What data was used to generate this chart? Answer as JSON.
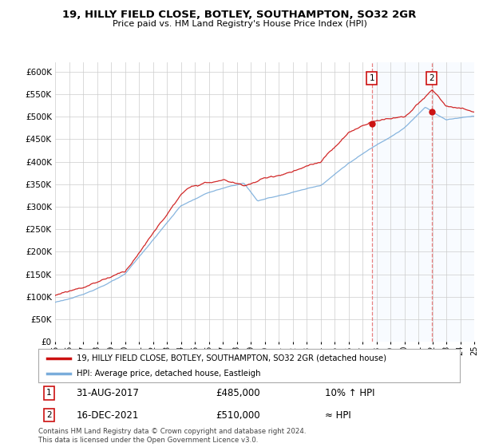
{
  "title1": "19, HILLY FIELD CLOSE, BOTLEY, SOUTHAMPTON, SO32 2GR",
  "title2": "Price paid vs. HM Land Registry's House Price Index (HPI)",
  "ytick_vals": [
    0,
    50000,
    100000,
    150000,
    200000,
    250000,
    300000,
    350000,
    400000,
    450000,
    500000,
    550000,
    600000
  ],
  "x_start_year": 1995,
  "x_end_year": 2025,
  "legend_line1": "19, HILLY FIELD CLOSE, BOTLEY, SOUTHAMPTON, SO32 2GR (detached house)",
  "legend_line2": "HPI: Average price, detached house, Eastleigh",
  "annotation1_date": "31-AUG-2017",
  "annotation1_price": "£485,000",
  "annotation1_hpi": "10% ↑ HPI",
  "annotation2_date": "16-DEC-2021",
  "annotation2_price": "£510,000",
  "annotation2_hpi": "≈ HPI",
  "footer": "Contains HM Land Registry data © Crown copyright and database right 2024.\nThis data is licensed under the Open Government Licence v3.0.",
  "sale1_year": 2017.667,
  "sale1_price": 485000,
  "sale2_year": 2021.958,
  "sale2_price": 510000,
  "hpi_color": "#7aaddb",
  "price_color": "#cc1111",
  "vline_color": "#e88080",
  "shade_color": "#ddeeff",
  "background_color": "#ffffff",
  "grid_color": "#cccccc"
}
